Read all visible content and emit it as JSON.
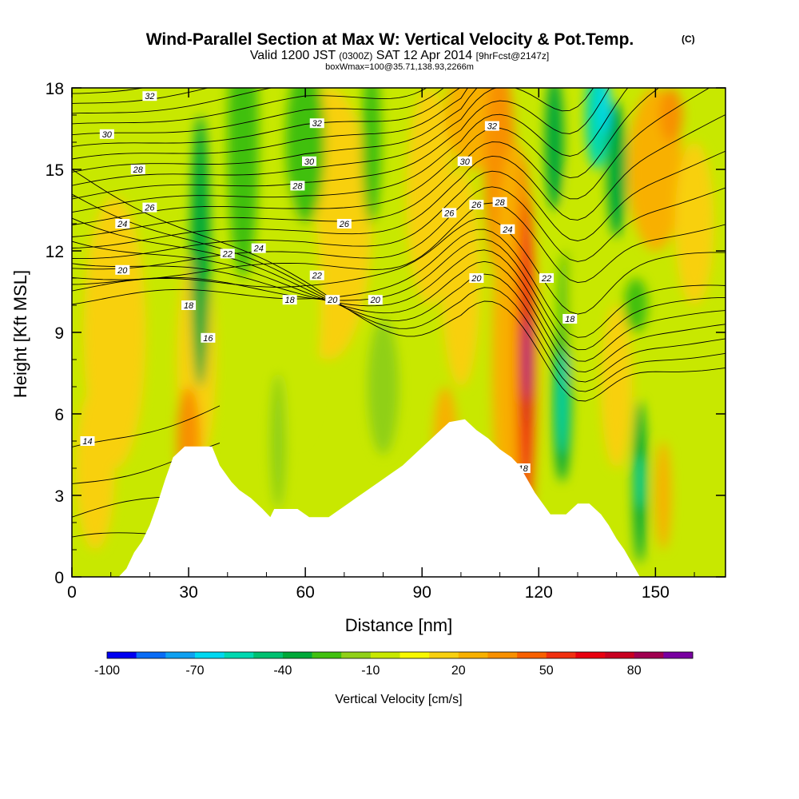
{
  "header": {
    "title": "Wind-Parallel Section at Max W: Vertical Velocity & Pot.Temp.",
    "title_mark": "(C)",
    "valid_prefix": "Valid 1200 JST",
    "valid_utc": "(0300Z)",
    "valid_date": "SAT 12 Apr 2014",
    "forecast": "[9hrFcst@2147z]",
    "box_info": "boxWmax=100@35.71,138.93,2266m"
  },
  "chart_data": {
    "type": "heatmap",
    "xlabel": "Distance [nm]",
    "ylabel": "Height [Kft MSL]",
    "xlim": [
      0,
      168
    ],
    "ylim": [
      0,
      18
    ],
    "x_ticks": [
      0,
      30,
      60,
      90,
      120,
      150
    ],
    "y_ticks": [
      0,
      3,
      6,
      9,
      12,
      15,
      18
    ],
    "colorbar": {
      "label": "Vertical Velocity [cm/s]",
      "tick_labels": [
        "-100",
        "-70",
        "-40",
        "-10",
        "20",
        "50",
        "80"
      ],
      "tick_values": [
        -100,
        -70,
        -40,
        -10,
        20,
        50,
        80
      ],
      "range": [
        -100,
        100
      ],
      "colors": [
        "#0000f0",
        "#0a6cf5",
        "#10a0f0",
        "#00d8f0",
        "#00d8b0",
        "#00c070",
        "#00a838",
        "#40c010",
        "#90d018",
        "#c8e800",
        "#f8f800",
        "#f8d010",
        "#f8b000",
        "#f89000",
        "#f86000",
        "#f03010",
        "#e80010",
        "#c80020",
        "#a00050",
        "#7800a0"
      ]
    },
    "theta_contour_labels": [
      "14",
      "16",
      "18",
      "20",
      "22",
      "24",
      "26",
      "28",
      "30",
      "32"
    ],
    "terrain": [
      {
        "x": 0,
        "h": 0
      },
      {
        "x": 12,
        "h": 0
      },
      {
        "x": 14,
        "h": 0.3
      },
      {
        "x": 16,
        "h": 0.9
      },
      {
        "x": 18,
        "h": 1.3
      },
      {
        "x": 20,
        "h": 1.9
      },
      {
        "x": 22,
        "h": 2.7
      },
      {
        "x": 24,
        "h": 3.6
      },
      {
        "x": 26,
        "h": 4.4
      },
      {
        "x": 29,
        "h": 4.8
      },
      {
        "x": 36,
        "h": 4.8
      },
      {
        "x": 38,
        "h": 4.1
      },
      {
        "x": 41,
        "h": 3.5
      },
      {
        "x": 43,
        "h": 3.2
      },
      {
        "x": 46,
        "h": 2.9
      },
      {
        "x": 49,
        "h": 2.5
      },
      {
        "x": 51,
        "h": 2.2
      },
      {
        "x": 52,
        "h": 2.5
      },
      {
        "x": 58,
        "h": 2.5
      },
      {
        "x": 61,
        "h": 2.2
      },
      {
        "x": 66,
        "h": 2.2
      },
      {
        "x": 69,
        "h": 2.5
      },
      {
        "x": 71,
        "h": 2.7
      },
      {
        "x": 73,
        "h": 2.9
      },
      {
        "x": 76,
        "h": 3.2
      },
      {
        "x": 79,
        "h": 3.5
      },
      {
        "x": 82,
        "h": 3.8
      },
      {
        "x": 85,
        "h": 4.1
      },
      {
        "x": 88,
        "h": 4.5
      },
      {
        "x": 91,
        "h": 4.9
      },
      {
        "x": 94,
        "h": 5.3
      },
      {
        "x": 97,
        "h": 5.7
      },
      {
        "x": 101,
        "h": 5.8
      },
      {
        "x": 104,
        "h": 5.4
      },
      {
        "x": 107,
        "h": 5.1
      },
      {
        "x": 110,
        "h": 4.7
      },
      {
        "x": 113,
        "h": 4.4
      },
      {
        "x": 115,
        "h": 4.1
      },
      {
        "x": 117,
        "h": 3.6
      },
      {
        "x": 119,
        "h": 3.1
      },
      {
        "x": 121,
        "h": 2.7
      },
      {
        "x": 123,
        "h": 2.3
      },
      {
        "x": 127,
        "h": 2.3
      },
      {
        "x": 130,
        "h": 2.7
      },
      {
        "x": 133,
        "h": 2.7
      },
      {
        "x": 136,
        "h": 2.3
      },
      {
        "x": 138,
        "h": 1.9
      },
      {
        "x": 140,
        "h": 1.4
      },
      {
        "x": 142,
        "h": 1.0
      },
      {
        "x": 144,
        "h": 0.5
      },
      {
        "x": 146,
        "h": 0
      },
      {
        "x": 168,
        "h": 0
      }
    ]
  }
}
